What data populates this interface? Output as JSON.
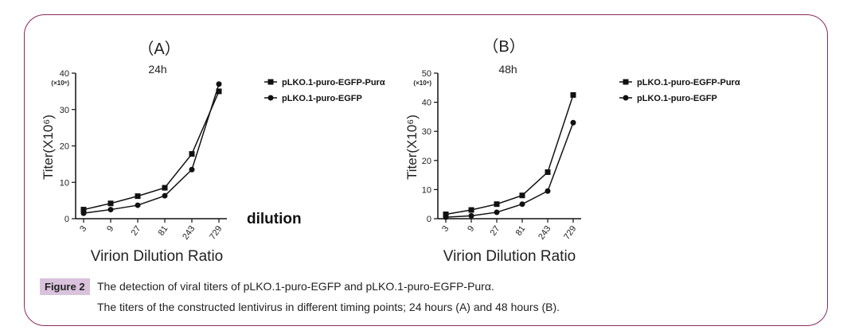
{
  "chart_data": [
    {
      "type": "line",
      "panel_label": "（A）",
      "title": "24h",
      "xlabel": "Virion Dilution Ratio",
      "ylabel": "Titer(X10⁶)",
      "y_multiplier": "(×10⁶)",
      "extra_label": "dilution",
      "categories": [
        "3",
        "9",
        "27",
        "81",
        "243",
        "729"
      ],
      "ylim": [
        0,
        40
      ],
      "yticks": [
        0,
        10,
        20,
        30,
        40
      ],
      "series": [
        {
          "name": "pLKO.1-puro-EGFP-Purα",
          "marker": "square",
          "values": [
            2.5,
            4.2,
            6.2,
            8.5,
            17.8,
            35.0
          ]
        },
        {
          "name": "pLKO.1-puro-EGFP",
          "marker": "circle",
          "values": [
            1.5,
            2.5,
            3.7,
            6.3,
            13.5,
            37.0
          ]
        }
      ]
    },
    {
      "type": "line",
      "panel_label": "（B）",
      "title": "48h",
      "xlabel": "Virion Dilution Ratio",
      "ylabel": "Titer(X10⁶)",
      "y_multiplier": "(×10⁶)",
      "categories": [
        "3",
        "9",
        "27",
        "81",
        "243",
        "729"
      ],
      "ylim": [
        0,
        50
      ],
      "yticks": [
        0,
        10,
        20,
        30,
        40,
        50
      ],
      "series": [
        {
          "name": "pLKO.1-puro-EGFP-Purα",
          "marker": "square",
          "values": [
            1.5,
            3.0,
            5.0,
            8.0,
            16.0,
            42.5
          ]
        },
        {
          "name": "pLKO.1-puro-EGFP",
          "marker": "circle",
          "values": [
            0.5,
            1.0,
            2.2,
            5.0,
            9.5,
            33.0
          ]
        }
      ]
    }
  ],
  "caption": {
    "tag": "Figure 2",
    "line1": "The detection of viral titers of pLKO.1-puro-EGFP and pLKO.1-puro-EGFP-Purα.",
    "line2": "The titers of the constructed lentivirus in different timing points; 24 hours (A) and 48 hours (B)."
  }
}
